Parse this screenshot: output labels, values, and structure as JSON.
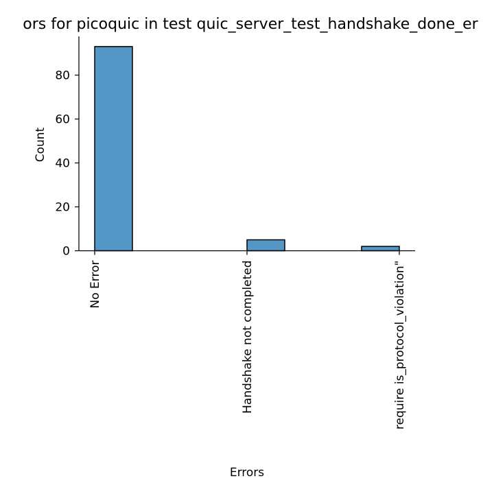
{
  "chart_data": {
    "type": "bar",
    "title": "ors for picoquic in test quic_server_test_handshake_done_er",
    "xlabel": "Errors",
    "ylabel": "Count",
    "categories": [
      "No Error",
      "Handshake not completed",
      "require is_protocol_violation\""
    ],
    "values": [
      93,
      5,
      2
    ],
    "ylim": [
      0,
      97.65
    ],
    "yticks": [
      0,
      20,
      40,
      60,
      80
    ],
    "grid": false,
    "legend": "none",
    "colors": {
      "bar_fill": "#5497c6",
      "bar_edge": "#000000",
      "axis": "#000000"
    }
  }
}
